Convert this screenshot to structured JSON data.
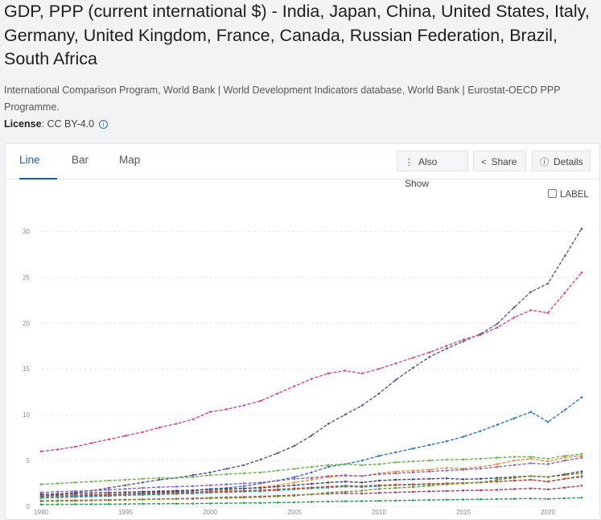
{
  "header": {
    "title": "GDP, PPP (current international $) - India, Japan, China, United States, Italy, Germany, United Kingdom, France, Canada, Russian Federation, Brazil, South Africa",
    "sources": "International Comparison Program, World Bank | World Development Indicators database, World Bank | Eurostat-OECD PPP Programme.",
    "license_label": "License",
    "license_value": ": CC BY-4.0"
  },
  "tabs": [
    {
      "label": "Line",
      "active": true
    },
    {
      "label": "Bar",
      "active": false
    },
    {
      "label": "Map",
      "active": false
    }
  ],
  "toolbar": {
    "also_show": "Also Show",
    "share": "Share",
    "details": "Details"
  },
  "label_toggle": "LABEL",
  "chart_data": {
    "type": "line",
    "title": "",
    "xlabel": "",
    "ylabel": "",
    "xlim": [
      1990,
      2022
    ],
    "ylim": [
      0,
      31
    ],
    "x_ticks": [
      1990,
      1995,
      2000,
      2005,
      2010,
      2015,
      2020
    ],
    "y_ticks": [
      0,
      5,
      10,
      15,
      20,
      25,
      30
    ],
    "grid": true,
    "x": [
      1990,
      1991,
      1992,
      1993,
      1994,
      1995,
      1996,
      1997,
      1998,
      1999,
      2000,
      2001,
      2002,
      2003,
      2004,
      2005,
      2006,
      2007,
      2008,
      2009,
      2010,
      2011,
      2012,
      2013,
      2014,
      2015,
      2016,
      2017,
      2018,
      2019,
      2020,
      2021,
      2022
    ],
    "series": [
      {
        "color": "#525c8a",
        "values": [
          1.1,
          1.3,
          1.5,
          1.7,
          2.0,
          2.3,
          2.6,
          2.9,
          3.1,
          3.4,
          3.7,
          4.1,
          4.5,
          5.1,
          5.8,
          6.6,
          7.7,
          9.0,
          10.0,
          11.0,
          12.3,
          13.8,
          15.1,
          16.3,
          17.2,
          18.0,
          18.8,
          19.9,
          21.7,
          23.4,
          24.3,
          27.3,
          30.3
        ]
      },
      {
        "color": "#d6478e",
        "values": [
          6.0,
          6.2,
          6.5,
          6.9,
          7.3,
          7.7,
          8.1,
          8.6,
          9.0,
          9.5,
          10.3,
          10.6,
          11.0,
          11.5,
          12.3,
          13.1,
          13.9,
          14.5,
          14.8,
          14.5,
          15.0,
          15.6,
          16.2,
          16.8,
          17.5,
          18.2,
          18.7,
          19.5,
          20.6,
          21.4,
          21.1,
          23.3,
          25.5
        ]
      },
      {
        "color": "#2f76b5",
        "values": [
          1.0,
          1.05,
          1.1,
          1.15,
          1.25,
          1.35,
          1.45,
          1.55,
          1.6,
          1.7,
          1.9,
          2.0,
          2.2,
          2.5,
          2.8,
          3.2,
          3.7,
          4.3,
          4.6,
          5.0,
          5.5,
          5.9,
          6.3,
          6.7,
          7.1,
          7.6,
          8.2,
          8.9,
          9.6,
          10.3,
          9.2,
          10.5,
          11.9
        ]
      },
      {
        "color": "#6eb04f",
        "values": [
          2.4,
          2.5,
          2.6,
          2.7,
          2.8,
          2.9,
          3.0,
          3.1,
          3.1,
          3.2,
          3.4,
          3.5,
          3.6,
          3.7,
          3.9,
          4.1,
          4.3,
          4.5,
          4.6,
          4.5,
          4.6,
          4.8,
          4.9,
          5.0,
          5.1,
          5.1,
          5.2,
          5.3,
          5.4,
          5.4,
          5.2,
          5.5,
          5.7
        ]
      },
      {
        "color": "#f08c3b",
        "values": [
          0.9,
          0.95,
          1.0,
          1.05,
          1.1,
          1.2,
          1.3,
          1.4,
          1.45,
          1.5,
          1.7,
          1.8,
          1.95,
          2.1,
          2.3,
          2.6,
          2.9,
          3.2,
          3.3,
          3.3,
          3.6,
          3.8,
          3.9,
          4.0,
          4.2,
          4.1,
          4.3,
          4.6,
          5.0,
          5.2,
          4.9,
          5.3,
          5.5
        ]
      },
      {
        "color": "#8a63b9",
        "values": [
          1.5,
          1.6,
          1.65,
          1.7,
          1.8,
          1.9,
          2.0,
          2.1,
          2.15,
          2.2,
          2.3,
          2.4,
          2.5,
          2.6,
          2.8,
          3.0,
          3.1,
          3.3,
          3.4,
          3.3,
          3.5,
          3.6,
          3.7,
          3.8,
          3.9,
          4.0,
          4.1,
          4.3,
          4.5,
          4.7,
          4.6,
          5.0,
          5.3
        ]
      },
      {
        "color": "#3b4170",
        "values": [
          1.3,
          1.35,
          1.4,
          1.45,
          1.5,
          1.55,
          1.6,
          1.65,
          1.7,
          1.75,
          1.85,
          1.9,
          1.95,
          2.0,
          2.15,
          2.3,
          2.45,
          2.6,
          2.7,
          2.6,
          2.8,
          2.9,
          2.95,
          3.0,
          3.05,
          2.95,
          3.0,
          3.1,
          3.2,
          3.3,
          3.2,
          3.5,
          3.8
        ]
      },
      {
        "color": "#1f9aa8",
        "values": [
          0.95,
          1.0,
          1.05,
          1.1,
          1.15,
          1.2,
          1.25,
          1.3,
          1.35,
          1.4,
          1.5,
          1.55,
          1.6,
          1.65,
          1.75,
          1.85,
          1.95,
          2.05,
          2.15,
          2.1,
          2.2,
          2.3,
          2.35,
          2.4,
          2.5,
          2.55,
          2.6,
          2.7,
          2.8,
          2.9,
          2.7,
          3.0,
          3.2
        ]
      },
      {
        "color": "#c0462e",
        "values": [
          1.15,
          1.2,
          1.22,
          1.25,
          1.3,
          1.35,
          1.4,
          1.45,
          1.5,
          1.55,
          1.6,
          1.65,
          1.7,
          1.75,
          1.85,
          1.95,
          2.05,
          2.15,
          2.25,
          2.2,
          2.3,
          2.35,
          2.4,
          2.45,
          2.5,
          2.55,
          2.6,
          2.7,
          2.8,
          2.9,
          2.7,
          3.0,
          3.3
        ]
      },
      {
        "color": "#a43a6b",
        "values": [
          0.6,
          0.62,
          0.65,
          0.67,
          0.7,
          0.73,
          0.76,
          0.8,
          0.83,
          0.87,
          0.93,
          0.98,
          1.03,
          1.08,
          1.15,
          1.22,
          1.3,
          1.37,
          1.42,
          1.4,
          1.47,
          1.53,
          1.58,
          1.63,
          1.68,
          1.72,
          1.75,
          1.8,
          1.88,
          1.95,
          1.85,
          2.05,
          2.25
        ]
      },
      {
        "color": "#7b8f2e",
        "values": [
          0.55,
          0.58,
          0.6,
          0.63,
          0.66,
          0.7,
          0.74,
          0.78,
          0.8,
          0.82,
          0.88,
          0.9,
          0.95,
          1.0,
          1.08,
          1.15,
          1.3,
          1.5,
          1.6,
          1.7,
          1.9,
          2.0,
          2.1,
          2.25,
          2.4,
          2.5,
          2.6,
          2.9,
          3.1,
          3.3,
          3.2,
          3.4,
          3.6
        ]
      },
      {
        "color": "#2e9a52",
        "values": [
          0.2,
          0.21,
          0.22,
          0.23,
          0.24,
          0.25,
          0.27,
          0.28,
          0.29,
          0.3,
          0.32,
          0.34,
          0.36,
          0.38,
          0.41,
          0.44,
          0.48,
          0.52,
          0.55,
          0.56,
          0.6,
          0.63,
          0.66,
          0.69,
          0.72,
          0.74,
          0.76,
          0.79,
          0.82,
          0.85,
          0.8,
          0.88,
          0.95
        ]
      }
    ]
  }
}
